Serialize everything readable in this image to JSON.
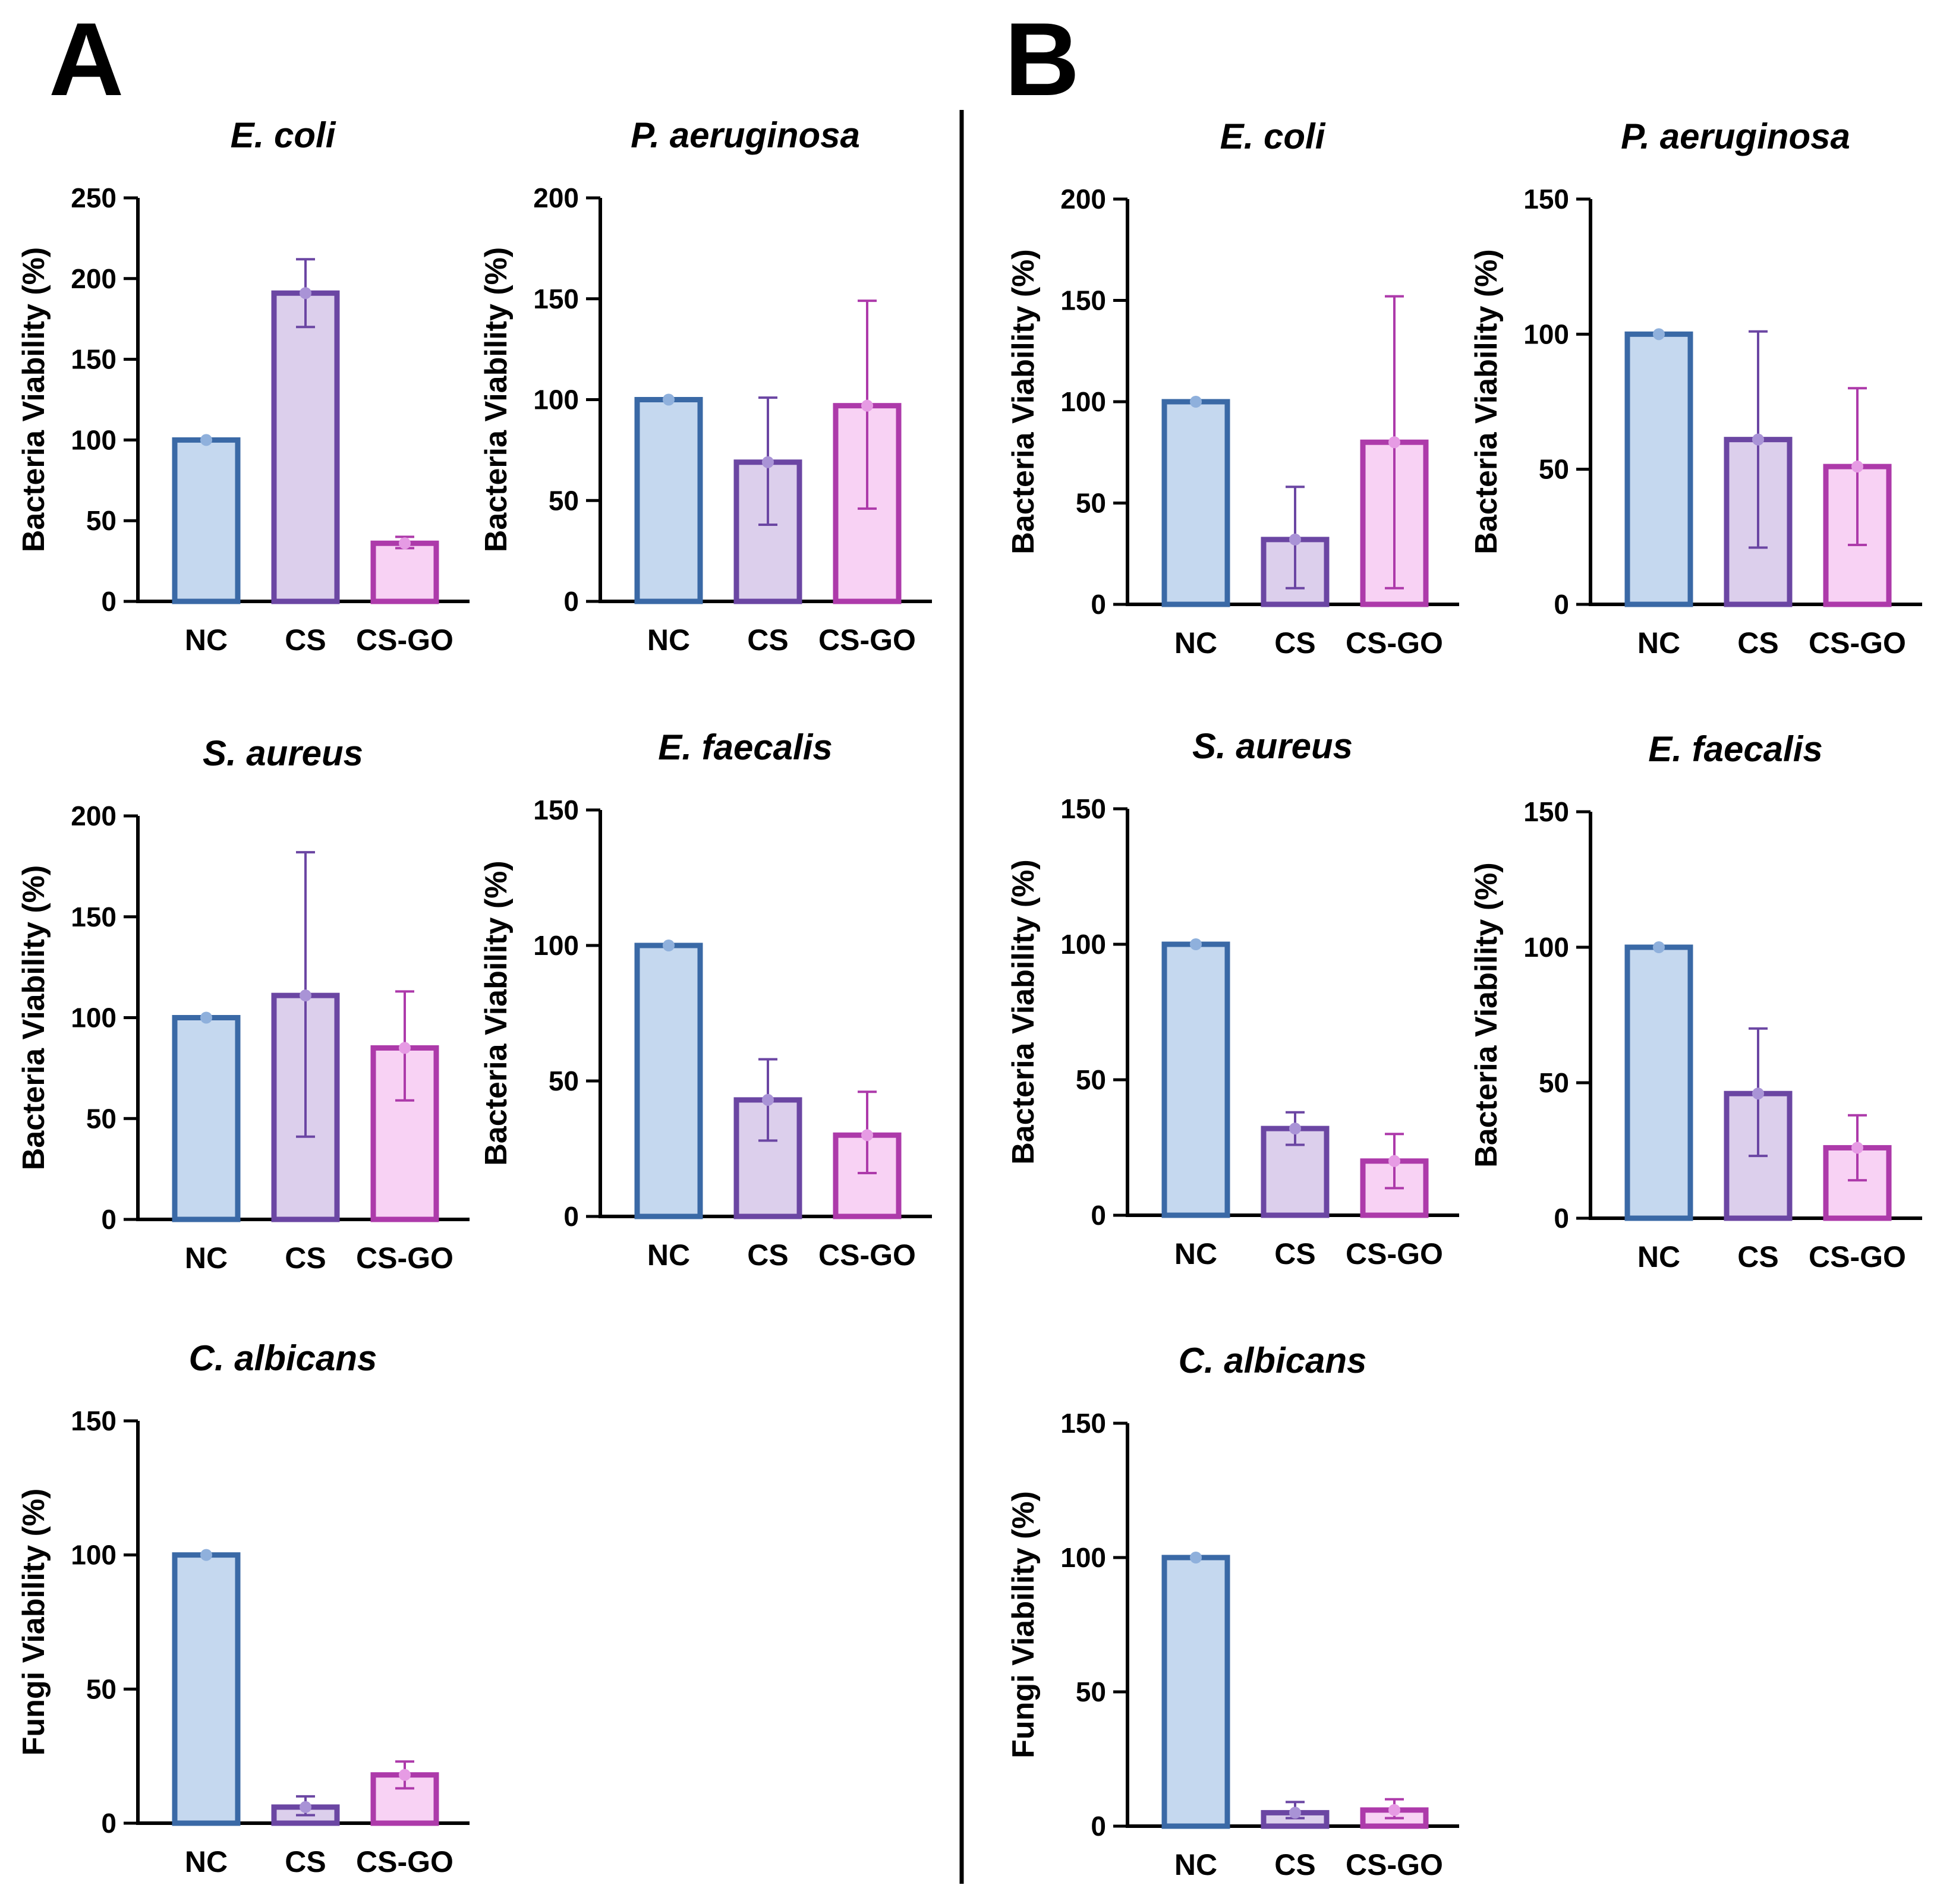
{
  "panels": [
    {
      "label": "A"
    },
    {
      "label": "B"
    }
  ],
  "colors": {
    "NC": {
      "fill": "#c5d8ef",
      "stroke": "#3a69a6",
      "dot": "#8fb0dc"
    },
    "CS": {
      "fill": "#dccfec",
      "stroke": "#6b46a3",
      "dot": "#a993d6"
    },
    "CS-GO": {
      "fill": "#f8d2f4",
      "stroke": "#ad3aaa",
      "dot": "#e69be4"
    }
  },
  "chart_data": [
    {
      "panel": "A",
      "type": "bar",
      "title": "E. coli",
      "ylabel": "Bacteria Viability (%)",
      "categories": [
        "NC",
        "CS",
        "CS-GO"
      ],
      "values": [
        100,
        191,
        36
      ],
      "errors": [
        [
          100,
          100
        ],
        [
          170,
          212
        ],
        [
          33,
          40
        ]
      ],
      "ylim": [
        0,
        250
      ],
      "yticks": [
        0,
        50,
        100,
        150,
        200,
        250
      ]
    },
    {
      "panel": "A",
      "type": "bar",
      "title": "P. aeruginosa",
      "ylabel": "Bacteria Viability (%)",
      "categories": [
        "NC",
        "CS",
        "CS-GO"
      ],
      "values": [
        100,
        69,
        97
      ],
      "errors": [
        [
          100,
          100
        ],
        [
          38,
          101
        ],
        [
          46,
          149
        ]
      ],
      "ylim": [
        0,
        200
      ],
      "yticks": [
        0,
        50,
        100,
        150,
        200
      ]
    },
    {
      "panel": "A",
      "type": "bar",
      "title": "S. aureus",
      "ylabel": "Bacteria Viability (%)",
      "categories": [
        "NC",
        "CS",
        "CS-GO"
      ],
      "values": [
        100,
        111,
        85
      ],
      "errors": [
        [
          100,
          100
        ],
        [
          41,
          182
        ],
        [
          59,
          113
        ]
      ],
      "ylim": [
        0,
        200
      ],
      "yticks": [
        0,
        50,
        100,
        150,
        200
      ]
    },
    {
      "panel": "A",
      "type": "bar",
      "title": "E. faecalis",
      "ylabel": "Bacteria Viability (%)",
      "categories": [
        "NC",
        "CS",
        "CS-GO"
      ],
      "values": [
        100,
        43,
        30
      ],
      "errors": [
        [
          100,
          100
        ],
        [
          28,
          58
        ],
        [
          16,
          46
        ]
      ],
      "ylim": [
        0,
        150
      ],
      "yticks": [
        0,
        50,
        100,
        150
      ]
    },
    {
      "panel": "A",
      "type": "bar",
      "title": "C. albicans",
      "ylabel": "Fungi Viability (%)",
      "categories": [
        "NC",
        "CS",
        "CS-GO"
      ],
      "values": [
        100,
        6,
        18
      ],
      "errors": [
        [
          100,
          100
        ],
        [
          3,
          10
        ],
        [
          13,
          23
        ]
      ],
      "ylim": [
        0,
        150
      ],
      "yticks": [
        0,
        50,
        100,
        150
      ]
    },
    {
      "panel": "B",
      "type": "bar",
      "title": "E. coli",
      "ylabel": "Bacteria Viability (%)",
      "categories": [
        "NC",
        "CS",
        "CS-GO"
      ],
      "values": [
        100,
        32,
        80
      ],
      "errors": [
        [
          100,
          100
        ],
        [
          8,
          58
        ],
        [
          8,
          152
        ]
      ],
      "ylim": [
        0,
        200
      ],
      "yticks": [
        0,
        50,
        100,
        150,
        200
      ]
    },
    {
      "panel": "B",
      "type": "bar",
      "title": "P. aeruginosa",
      "ylabel": "Bacteria Viability (%)",
      "categories": [
        "NC",
        "CS",
        "CS-GO"
      ],
      "values": [
        100,
        61,
        51
      ],
      "errors": [
        [
          100,
          100
        ],
        [
          21,
          101
        ],
        [
          22,
          80
        ]
      ],
      "ylim": [
        0,
        150
      ],
      "yticks": [
        0,
        50,
        100,
        150
      ]
    },
    {
      "panel": "B",
      "type": "bar",
      "title": "S. aureus",
      "ylabel": "Bacteria Viability (%)",
      "categories": [
        "NC",
        "CS",
        "CS-GO"
      ],
      "values": [
        100,
        32,
        20
      ],
      "errors": [
        [
          100,
          100
        ],
        [
          26,
          38
        ],
        [
          10,
          30
        ]
      ],
      "ylim": [
        0,
        150
      ],
      "yticks": [
        0,
        50,
        100,
        150
      ]
    },
    {
      "panel": "B",
      "type": "bar",
      "title": "E. faecalis",
      "ylabel": "Bacteria Viability (%)",
      "categories": [
        "NC",
        "CS",
        "CS-GO"
      ],
      "values": [
        100,
        46,
        26
      ],
      "errors": [
        [
          100,
          100
        ],
        [
          23,
          70
        ],
        [
          14,
          38
        ]
      ],
      "ylim": [
        0,
        150
      ],
      "yticks": [
        0,
        50,
        100,
        150
      ]
    },
    {
      "panel": "B",
      "type": "bar",
      "title": "C. albicans",
      "ylabel": "Fungi Viability (%)",
      "categories": [
        "NC",
        "CS",
        "CS-GO"
      ],
      "values": [
        100,
        5,
        6
      ],
      "errors": [
        [
          100,
          100
        ],
        [
          3,
          9
        ],
        [
          3,
          10
        ]
      ],
      "ylim": [
        0,
        150
      ],
      "yticks": [
        0,
        50,
        100,
        150
      ]
    }
  ]
}
